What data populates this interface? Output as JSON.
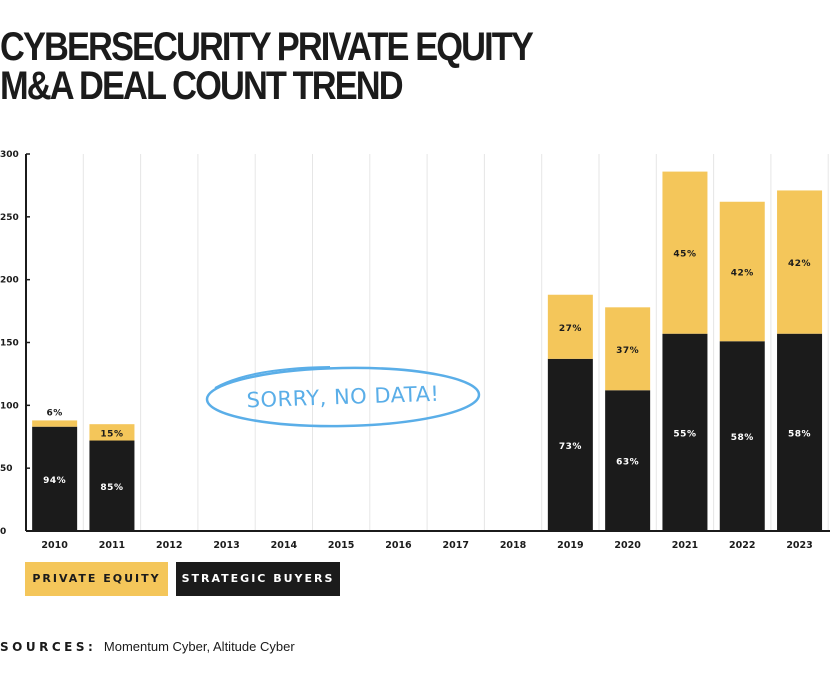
{
  "title": {
    "line1": "CYBERSECURITY PRIVATE EQUITY",
    "line2": "M&A DEAL COUNT TREND"
  },
  "annotation": "SORRY, NO DATA!",
  "sources": {
    "label": "SOURCES:",
    "text": "Momentum Cyber, Altitude Cyber"
  },
  "colors": {
    "private_equity": "#f4c65a",
    "strategic_buyers": "#1b1b1b",
    "annotation": "#5aaee8",
    "grid": "#e6e6e6"
  },
  "chart_data": {
    "type": "bar",
    "stacked": true,
    "title": "CYBERSECURITY PRIVATE EQUITY M&A DEAL COUNT TREND",
    "xlabel": "",
    "ylabel": "",
    "ylim": [
      0,
      300
    ],
    "yticks": [
      0,
      50,
      100,
      150,
      200,
      250,
      300
    ],
    "categories": [
      "2010",
      "2011",
      "2012",
      "2013",
      "2014",
      "2015",
      "2016",
      "2017",
      "2018",
      "2019",
      "2020",
      "2021",
      "2022",
      "2023"
    ],
    "legend_position": "bottom-left",
    "series": [
      {
        "name": "STRATEGIC BUYERS",
        "color": "#1b1b1b",
        "values": [
          83,
          72,
          null,
          null,
          null,
          null,
          null,
          null,
          null,
          137,
          112,
          157,
          151,
          157
        ],
        "labels": [
          "94%",
          "85%",
          null,
          null,
          null,
          null,
          null,
          null,
          null,
          "73%",
          "63%",
          "55%",
          "58%",
          "58%"
        ]
      },
      {
        "name": "PRIVATE EQUITY",
        "color": "#f4c65a",
        "values": [
          5,
          13,
          null,
          null,
          null,
          null,
          null,
          null,
          null,
          51,
          66,
          129,
          111,
          114
        ],
        "labels": [
          "6%",
          "15%",
          null,
          null,
          null,
          null,
          null,
          null,
          null,
          "27%",
          "37%",
          "45%",
          "42%",
          "42%"
        ]
      }
    ]
  }
}
